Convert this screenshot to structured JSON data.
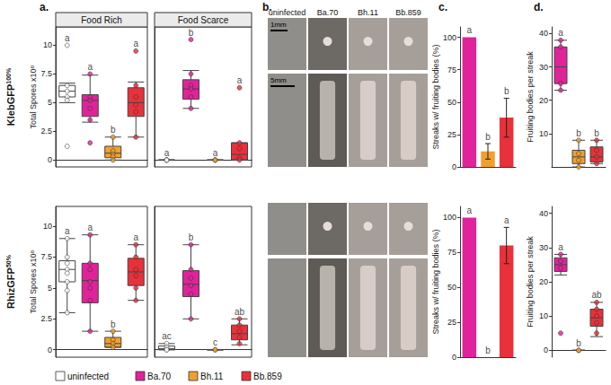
{
  "panel_labels": [
    "a.",
    "b.",
    "c.",
    "d."
  ],
  "row_labels": [
    {
      "text": "KlebGFP",
      "superscript": "100%"
    },
    {
      "text": "RhizGFP",
      "superscript": "50%"
    }
  ],
  "images": {
    "columns": [
      "uninfected",
      "Ba.70",
      "Bh.11",
      "Bb.859"
    ],
    "scale_bars": [
      "1mm",
      "5mm"
    ]
  },
  "chart_data": [
    {
      "type": "boxplot",
      "title": "Food Rich",
      "ylabel": "Total Spores x10⁸",
      "ylim": [
        -0.6,
        11.6
      ],
      "yticks": [
        0,
        2.5,
        5,
        7.5,
        10
      ],
      "tick_labels": "y",
      "legend": "bottom",
      "series": [
        {
          "name": "uninfected",
          "color": "#ffffff",
          "box": [
            5.0,
            5.5,
            6.0,
            6.5,
            6.7
          ],
          "values": [
            10,
            6.5,
            6,
            5.5,
            5.2,
            1.2
          ],
          "letter": "a"
        },
        {
          "name": "Ba.70",
          "color": "#e0239b",
          "box": [
            3.3,
            3.8,
            5.2,
            5.7,
            7.4
          ],
          "values": [
            7.5,
            5.5,
            5.2,
            4.5,
            3.5,
            1.5
          ],
          "letter": "a"
        },
        {
          "name": "Bh.11",
          "color": "#f0a030",
          "box": [
            0,
            0.2,
            0.6,
            1.2,
            2
          ],
          "values": [
            2,
            0.8,
            0.5,
            0.3,
            0
          ],
          "letter": "b"
        },
        {
          "name": "Bb.859",
          "color": "#e8313a",
          "box": [
            2,
            3.8,
            5,
            6.3,
            6.8
          ],
          "values": [
            9.5,
            6.5,
            5.5,
            4.8,
            4.2,
            2
          ],
          "letter": "a"
        }
      ]
    },
    {
      "type": "boxplot",
      "title": "Food Scarce",
      "ylim": [
        -0.6,
        11.6
      ],
      "yticks": [
        0,
        2.5,
        5,
        7.5,
        10
      ],
      "tick_labels": false,
      "series": [
        {
          "name": "uninfected",
          "color": "#ffffff",
          "box": [
            0,
            0,
            0,
            0,
            0
          ],
          "values": [
            0,
            0,
            0,
            0
          ],
          "letter": "a"
        },
        {
          "name": "Ba.70",
          "color": "#e0239b",
          "box": [
            4.5,
            5.3,
            6.2,
            7,
            7.8
          ],
          "values": [
            10.5,
            7.5,
            6.5,
            6.2,
            5.5,
            4.5
          ],
          "letter": "b"
        },
        {
          "name": "Bh.11",
          "color": "#f0a030",
          "box": [
            0,
            0,
            0,
            0,
            0
          ],
          "values": [
            0,
            0,
            0
          ],
          "letter": "a"
        },
        {
          "name": "Bb.859",
          "color": "#e8313a",
          "box": [
            0,
            0,
            0.5,
            1.5,
            1.5
          ],
          "values": [
            6.3,
            1.5,
            1,
            0.2,
            0
          ],
          "letter": "a"
        }
      ]
    },
    {
      "type": "boxplot",
      "ylabel": "Total Spores x10⁸",
      "ylim": [
        -0.6,
        11.6
      ],
      "yticks": [
        0,
        2.5,
        5,
        7.5,
        10
      ],
      "tick_labels": "y",
      "series": [
        {
          "name": "uninfected",
          "color": "#ffffff",
          "box": [
            3,
            5.5,
            6.5,
            7.2,
            9
          ],
          "values": [
            9,
            7.5,
            7,
            6.5,
            6.2,
            5.5,
            4.8,
            3
          ],
          "letter": "a"
        },
        {
          "name": "Ba.70",
          "color": "#e0239b",
          "box": [
            1.5,
            3.8,
            5.6,
            7,
            9.3
          ],
          "values": [
            9.3,
            7,
            6.5,
            5.5,
            5,
            4,
            1.5
          ],
          "letter": "a"
        },
        {
          "name": "Bh.11",
          "color": "#f0a030",
          "box": [
            0.2,
            0.2,
            0.5,
            1,
            1.5
          ],
          "values": [
            1.5,
            0.8,
            0.5,
            0.2
          ],
          "letter": "b"
        },
        {
          "name": "Bb.859",
          "color": "#e8313a",
          "box": [
            4,
            5.2,
            6.3,
            7.4,
            8.5
          ],
          "values": [
            8.5,
            7.5,
            6.5,
            6,
            5,
            4
          ],
          "letter": "a"
        }
      ]
    },
    {
      "type": "boxplot",
      "ylim": [
        -0.6,
        11.6
      ],
      "yticks": [
        0,
        2.5,
        5,
        7.5,
        10
      ],
      "tick_labels": false,
      "series": [
        {
          "name": "uninfected",
          "color": "#ffffff",
          "box": [
            0,
            0,
            0.1,
            0.3,
            0.5
          ],
          "values": [
            0.5,
            0.2,
            0,
            0
          ],
          "letter": "ac"
        },
        {
          "name": "Ba.70",
          "color": "#e0239b",
          "box": [
            2.5,
            4.3,
            5.3,
            6.4,
            8.5
          ],
          "values": [
            8.5,
            6.5,
            5.8,
            5.2,
            4.5,
            2.5
          ],
          "letter": "b"
        },
        {
          "name": "Bh.11",
          "color": "#f0a030",
          "box": [
            0,
            0,
            0,
            0,
            0
          ],
          "values": [
            0,
            0
          ],
          "letter": "c"
        },
        {
          "name": "Bb.859",
          "color": "#e8313a",
          "box": [
            0.4,
            0.8,
            1.3,
            2,
            2.5
          ],
          "values": [
            2.5,
            2,
            1.5,
            1,
            0.5
          ],
          "letter": "ab"
        }
      ]
    },
    {
      "type": "bar",
      "ylabel": "Streaks w/ fruiting bodies (%)",
      "ylim": [
        0,
        108
      ],
      "yticks": [
        0,
        25,
        50,
        75,
        100
      ],
      "tick_labels": "y",
      "series": [
        {
          "name": "Ba.70",
          "color": "#e0239b",
          "values": [
            100
          ],
          "errors": [
            null
          ],
          "letter": "a"
        },
        {
          "name": "Bh.11",
          "color": "#f0a030",
          "values": [
            12
          ],
          "errors": [
            6
          ],
          "letter": "b"
        },
        {
          "name": "Bb.859",
          "color": "#e8313a",
          "values": [
            38
          ],
          "errors": [
            15
          ],
          "letter": "b"
        }
      ]
    },
    {
      "type": "bar",
      "ylabel": "Streaks w/ fruiting bodies (%)",
      "ylim": [
        0,
        108
      ],
      "yticks": [
        0,
        25,
        50,
        75,
        100
      ],
      "tick_labels": "y",
      "series": [
        {
          "name": "Ba.70",
          "color": "#e0239b",
          "values": [
            100
          ],
          "errors": [
            null
          ],
          "letter": "a"
        },
        {
          "name": "Bh.11",
          "color": "#f0a030",
          "values": [
            0
          ],
          "errors": [
            null
          ],
          "letter": "b"
        },
        {
          "name": "Bb.859",
          "color": "#e8313a",
          "values": [
            80
          ],
          "errors": [
            13
          ],
          "letter": "a"
        }
      ]
    },
    {
      "type": "boxplot",
      "ylabel": "Fruiting bodies per streak",
      "ylim": [
        0,
        42
      ],
      "yticks": [
        10,
        20,
        30,
        40
      ],
      "tick_labels": "y",
      "series": [
        {
          "name": "Ba.70",
          "color": "#e0239b",
          "box": [
            23,
            25,
            30,
            36,
            38
          ],
          "values": [
            38,
            36,
            25,
            23
          ],
          "letter": "a"
        },
        {
          "name": "Bh.11",
          "color": "#f0a030",
          "box": [
            0,
            1,
            3,
            5,
            8
          ],
          "values": [
            8,
            4,
            2,
            0
          ],
          "letter": "b"
        },
        {
          "name": "Bb.859",
          "color": "#e8313a",
          "box": [
            1,
            1.5,
            3,
            6,
            8
          ],
          "values": [
            8,
            5,
            3,
            1
          ],
          "letter": "b"
        }
      ]
    },
    {
      "type": "boxplot",
      "ylabel": "Fruiting bodies per streak",
      "ylim": [
        -2,
        42
      ],
      "yticks": [
        0,
        10,
        20,
        30,
        40
      ],
      "tick_labels": "y",
      "series": [
        {
          "name": "Ba.70",
          "color": "#e0239b",
          "box": [
            22,
            23,
            25,
            27,
            28
          ],
          "values": [
            28,
            26,
            24,
            5
          ],
          "letter": "a"
        },
        {
          "name": "Bh.11",
          "color": "#f0a030",
          "box": [
            0,
            0,
            0,
            0,
            0
          ],
          "values": [
            0,
            0
          ],
          "letter": "b"
        },
        {
          "name": "Bb.859",
          "color": "#e8313a",
          "box": [
            4,
            7,
            9.5,
            12,
            14
          ],
          "values": [
            14,
            12,
            10,
            8,
            5
          ],
          "letter": "ab"
        }
      ]
    }
  ]
}
